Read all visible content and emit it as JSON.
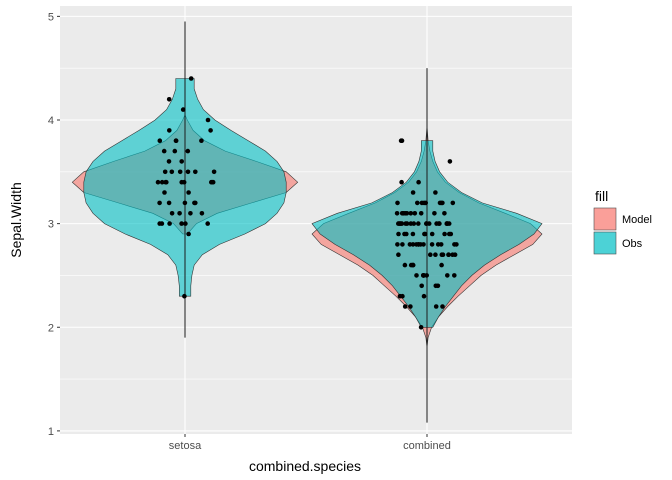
{
  "chart_data": {
    "type": "violin",
    "xlabel": "combined.species",
    "ylabel": "Sepal.Width",
    "categories": [
      "setosa",
      "combined"
    ],
    "ylim": [
      0.97,
      5.1
    ],
    "yticks": [
      1,
      2,
      3,
      4,
      5
    ],
    "grid": true,
    "legend": {
      "title": "fill",
      "position": "right",
      "entries": [
        {
          "label": "Model",
          "color": "#F8766D"
        },
        {
          "label": "Obs",
          "color": "#00BFC4"
        }
      ]
    },
    "series": [
      {
        "name": "Model",
        "color": "#F8766D",
        "violins": [
          {
            "category": "setosa",
            "ymin": 2.9,
            "ymax": 4.05,
            "profile": [
              [
                2.9,
                0.02
              ],
              [
                3.0,
                0.1
              ],
              [
                3.1,
                0.28
              ],
              [
                3.2,
                0.58
              ],
              [
                3.3,
                0.88
              ],
              [
                3.4,
                0.98
              ],
              [
                3.5,
                0.88
              ],
              [
                3.6,
                0.62
              ],
              [
                3.7,
                0.35
              ],
              [
                3.8,
                0.17
              ],
              [
                3.9,
                0.07
              ],
              [
                4.0,
                0.02
              ],
              [
                4.05,
                0.0
              ]
            ]
          },
          {
            "category": "combined",
            "ymin": 1.8,
            "ymax": 3.95,
            "profile": [
              [
                1.8,
                0.0
              ],
              [
                1.9,
                0.01
              ],
              [
                2.0,
                0.04
              ],
              [
                2.1,
                0.1
              ],
              [
                2.2,
                0.18
              ],
              [
                2.3,
                0.27
              ],
              [
                2.4,
                0.37
              ],
              [
                2.5,
                0.47
              ],
              [
                2.6,
                0.6
              ],
              [
                2.7,
                0.76
              ],
              [
                2.8,
                0.92
              ],
              [
                2.9,
                1.0
              ],
              [
                3.0,
                0.9
              ],
              [
                3.1,
                0.68
              ],
              [
                3.2,
                0.45
              ],
              [
                3.3,
                0.28
              ],
              [
                3.4,
                0.16
              ],
              [
                3.5,
                0.09
              ],
              [
                3.6,
                0.05
              ],
              [
                3.7,
                0.025
              ],
              [
                3.8,
                0.01
              ],
              [
                3.95,
                0.0
              ]
            ]
          }
        ]
      },
      {
        "name": "Obs",
        "color": "#00BFC4",
        "violins": [
          {
            "category": "setosa",
            "ymin": 2.3,
            "ymax": 4.4,
            "profile": [
              [
                2.3,
                0.05
              ],
              [
                2.4,
                0.05
              ],
              [
                2.5,
                0.06
              ],
              [
                2.6,
                0.08
              ],
              [
                2.7,
                0.15
              ],
              [
                2.8,
                0.3
              ],
              [
                2.9,
                0.52
              ],
              [
                3.0,
                0.7
              ],
              [
                3.1,
                0.8
              ],
              [
                3.2,
                0.86
              ],
              [
                3.3,
                0.88
              ],
              [
                3.4,
                0.88
              ],
              [
                3.5,
                0.86
              ],
              [
                3.6,
                0.8
              ],
              [
                3.7,
                0.7
              ],
              [
                3.8,
                0.55
              ],
              [
                3.9,
                0.4
              ],
              [
                4.0,
                0.26
              ],
              [
                4.1,
                0.16
              ],
              [
                4.2,
                0.11
              ],
              [
                4.3,
                0.08
              ],
              [
                4.4,
                0.08
              ]
            ]
          },
          {
            "category": "combined",
            "ymin": 2.0,
            "ymax": 3.8,
            "profile": [
              [
                2.0,
                0.05
              ],
              [
                2.1,
                0.1
              ],
              [
                2.2,
                0.16
              ],
              [
                2.3,
                0.23
              ],
              [
                2.4,
                0.3
              ],
              [
                2.5,
                0.39
              ],
              [
                2.6,
                0.5
              ],
              [
                2.7,
                0.64
              ],
              [
                2.8,
                0.8
              ],
              [
                2.9,
                0.93
              ],
              [
                3.0,
                1.0
              ],
              [
                3.1,
                0.78
              ],
              [
                3.2,
                0.48
              ],
              [
                3.3,
                0.3
              ],
              [
                3.4,
                0.18
              ],
              [
                3.5,
                0.11
              ],
              [
                3.6,
                0.07
              ],
              [
                3.7,
                0.05
              ],
              [
                3.8,
                0.05
              ]
            ]
          }
        ]
      }
    ],
    "whiskers": [
      {
        "category": "setosa",
        "low": 1.9,
        "high": 4.95
      },
      {
        "category": "combined",
        "low": 1.08,
        "high": 4.5
      }
    ],
    "points": [
      {
        "category": "setosa",
        "values": [
          2.3,
          2.9,
          3.0,
          3.0,
          3.0,
          3.0,
          3.0,
          3.0,
          3.1,
          3.1,
          3.1,
          3.1,
          3.2,
          3.2,
          3.2,
          3.2,
          3.2,
          3.3,
          3.3,
          3.4,
          3.4,
          3.4,
          3.4,
          3.4,
          3.4,
          3.4,
          3.4,
          3.4,
          3.5,
          3.5,
          3.5,
          3.5,
          3.5,
          3.5,
          3.6,
          3.6,
          3.7,
          3.7,
          3.7,
          3.8,
          3.8,
          3.8,
          3.8,
          3.9,
          3.9,
          4.0,
          4.1,
          4.2,
          4.4
        ]
      },
      {
        "category": "combined",
        "values": [
          2.0,
          2.2,
          2.2,
          2.2,
          2.2,
          2.3,
          2.3,
          2.3,
          2.4,
          2.4,
          2.4,
          2.5,
          2.5,
          2.5,
          2.5,
          2.5,
          2.5,
          2.5,
          2.5,
          2.6,
          2.6,
          2.6,
          2.6,
          2.6,
          2.7,
          2.7,
          2.7,
          2.7,
          2.7,
          2.7,
          2.7,
          2.7,
          2.7,
          2.8,
          2.8,
          2.8,
          2.8,
          2.8,
          2.8,
          2.8,
          2.8,
          2.8,
          2.8,
          2.8,
          2.8,
          2.8,
          2.8,
          2.9,
          2.9,
          2.9,
          2.9,
          2.9,
          2.9,
          2.9,
          2.9,
          2.9,
          2.9,
          3.0,
          3.0,
          3.0,
          3.0,
          3.0,
          3.0,
          3.0,
          3.0,
          3.0,
          3.0,
          3.0,
          3.0,
          3.0,
          3.0,
          3.0,
          3.0,
          3.0,
          3.0,
          3.0,
          3.0,
          3.1,
          3.1,
          3.1,
          3.1,
          3.1,
          3.1,
          3.1,
          3.1,
          3.1,
          3.1,
          3.2,
          3.2,
          3.2,
          3.2,
          3.2,
          3.2,
          3.2,
          3.2,
          3.2,
          3.3,
          3.3,
          3.4,
          3.4,
          3.6,
          3.8,
          3.8
        ]
      }
    ]
  }
}
